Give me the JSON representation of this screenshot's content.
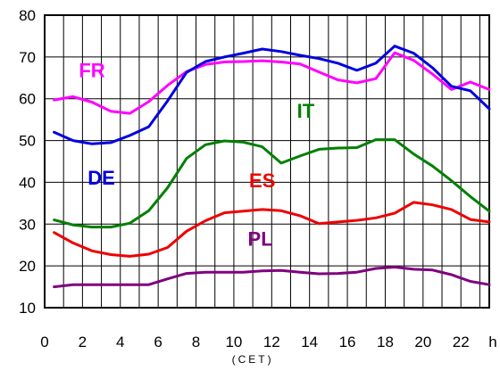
{
  "chart_data": {
    "type": "line",
    "title": "",
    "xlabel": "(CET)",
    "x_unit_label": "h",
    "ylabel": "",
    "xlim": [
      0,
      23.5
    ],
    "ylim": [
      10,
      80
    ],
    "x_ticks": [
      0,
      2,
      4,
      6,
      8,
      10,
      12,
      14,
      16,
      18,
      20,
      22
    ],
    "x_tick_labels": [
      "0",
      "2",
      "4",
      "6",
      "8",
      "10",
      "12",
      "14",
      "16",
      "18",
      "20",
      "22"
    ],
    "y_ticks": [
      10,
      20,
      30,
      40,
      50,
      60,
      70,
      80
    ],
    "y_tick_labels": [
      "10",
      "20",
      "30",
      "40",
      "50",
      "60",
      "70",
      "80"
    ],
    "x_grid_major": 2,
    "x_grid_minor": 1,
    "grid": true,
    "legend": "inline labels",
    "x": [
      0.5,
      1.5,
      2.5,
      3.5,
      4.5,
      5.5,
      6.5,
      7.5,
      8.5,
      9.5,
      10.5,
      11.5,
      12.5,
      13.5,
      14.5,
      15.5,
      16.5,
      17.5,
      18.5,
      19.5,
      20.5,
      21.5,
      22.5,
      23.5
    ],
    "series": [
      {
        "name": "FR",
        "color": "#ff00ff",
        "label_at": [
          2.5,
          65.2
        ],
        "values": [
          59.7,
          60.5,
          59.2,
          57.0,
          56.5,
          59.3,
          63.2,
          66.5,
          68.2,
          68.8,
          68.9,
          69.1,
          68.8,
          68.3,
          66.4,
          64.5,
          63.8,
          64.8,
          71.0,
          69.2,
          65.9,
          62.2,
          64.0,
          62.2
        ]
      },
      {
        "name": "DE",
        "color": "#0000e0",
        "label_at": [
          3.0,
          39.5
        ],
        "values": [
          52.0,
          50.0,
          49.2,
          49.5,
          51.2,
          53.3,
          59.5,
          66.3,
          68.9,
          70.0,
          70.9,
          71.9,
          71.3,
          70.4,
          69.6,
          68.5,
          66.8,
          68.5,
          72.6,
          70.9,
          67.4,
          63.0,
          61.9,
          57.6
        ]
      },
      {
        "name": "IT",
        "color": "#008000",
        "label_at": [
          13.8,
          55.5
        ],
        "values": [
          31.0,
          29.8,
          29.3,
          29.3,
          30.2,
          33.2,
          38.7,
          45.7,
          49.0,
          49.9,
          49.6,
          48.5,
          44.6,
          46.3,
          47.9,
          48.2,
          48.3,
          50.2,
          50.2,
          46.8,
          43.9,
          40.4,
          36.6,
          33.1
        ]
      },
      {
        "name": "ES",
        "color": "#ee0000",
        "label_at": [
          11.5,
          38.8
        ],
        "values": [
          28.0,
          25.5,
          23.6,
          22.7,
          22.3,
          22.8,
          24.4,
          28.3,
          30.8,
          32.7,
          33.1,
          33.5,
          33.2,
          32.0,
          30.1,
          30.5,
          30.9,
          31.5,
          32.6,
          35.2,
          34.6,
          33.5,
          31.1,
          30.5
        ]
      },
      {
        "name": "PL",
        "color": "#800080",
        "label_at": [
          11.4,
          24.8
        ],
        "values": [
          15.0,
          15.5,
          15.5,
          15.5,
          15.5,
          15.5,
          16.9,
          18.2,
          18.5,
          18.5,
          18.5,
          18.8,
          18.9,
          18.5,
          18.1,
          18.2,
          18.5,
          19.4,
          19.7,
          19.2,
          19.0,
          17.9,
          16.3,
          15.5
        ]
      }
    ]
  }
}
